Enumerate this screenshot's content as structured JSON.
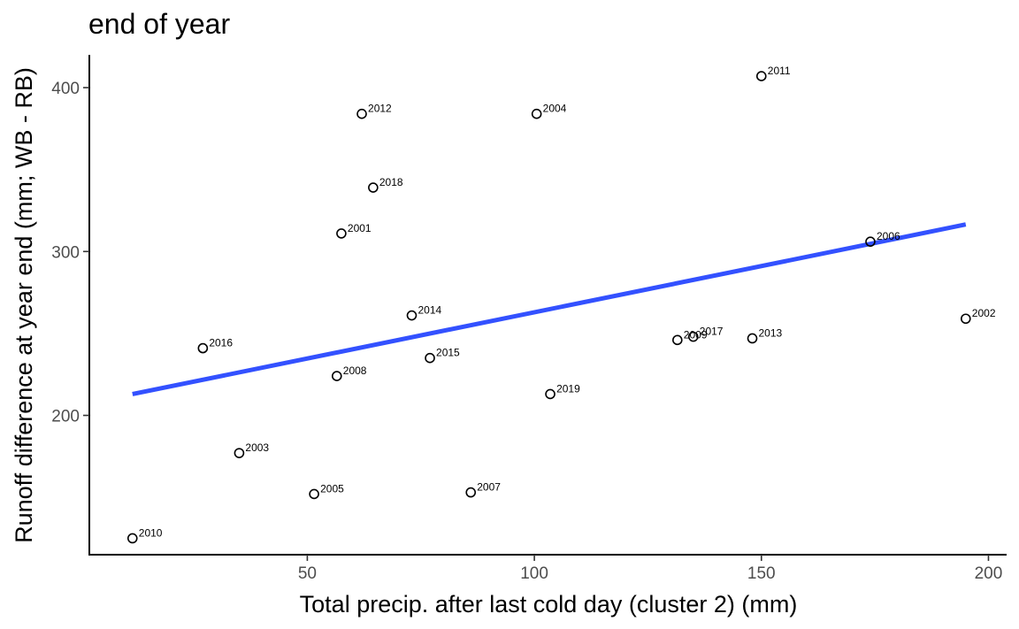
{
  "chart_data": {
    "type": "scatter",
    "title": "end of year",
    "xlabel": "Total precip. after last cold day (cluster 2) (mm)",
    "ylabel": "Runoff difference at year end (mm; WB - RB)",
    "xlim": [
      2,
      204
    ],
    "ylim": [
      115,
      420
    ],
    "x_ticks": [
      50,
      100,
      150,
      200
    ],
    "y_ticks": [
      200,
      300,
      400
    ],
    "grid": false,
    "points": [
      {
        "label": "2001",
        "x": 57.5,
        "y": 311
      },
      {
        "label": "2002",
        "x": 195,
        "y": 259
      },
      {
        "label": "2003",
        "x": 35,
        "y": 177
      },
      {
        "label": "2004",
        "x": 100.5,
        "y": 384
      },
      {
        "label": "2005",
        "x": 51.5,
        "y": 152
      },
      {
        "label": "2006",
        "x": 174,
        "y": 306
      },
      {
        "label": "2007",
        "x": 86,
        "y": 153
      },
      {
        "label": "2008",
        "x": 56.5,
        "y": 224
      },
      {
        "label": "2009",
        "x": 131.5,
        "y": 246
      },
      {
        "label": "2010",
        "x": 11.5,
        "y": 125
      },
      {
        "label": "2011",
        "x": 150,
        "y": 407
      },
      {
        "label": "2012",
        "x": 62,
        "y": 384
      },
      {
        "label": "2013",
        "x": 148,
        "y": 247
      },
      {
        "label": "2014",
        "x": 73,
        "y": 261
      },
      {
        "label": "2015",
        "x": 77,
        "y": 235
      },
      {
        "label": "2016",
        "x": 27,
        "y": 241
      },
      {
        "label": "2017",
        "x": 135,
        "y": 248
      },
      {
        "label": "2018",
        "x": 64.5,
        "y": 339
      },
      {
        "label": "2019",
        "x": 103.5,
        "y": 213
      }
    ],
    "trend_line": {
      "x": [
        11.5,
        195
      ],
      "y": [
        213,
        316.5
      ]
    },
    "colors": {
      "trend": "#3351ff",
      "points": "#000000"
    }
  }
}
